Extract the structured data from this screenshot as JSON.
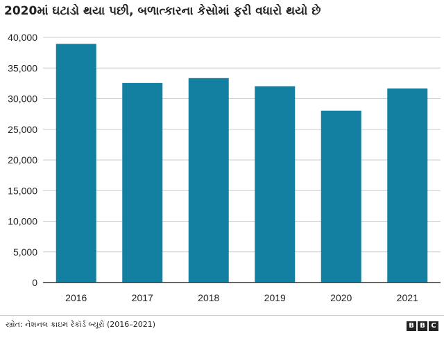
{
  "chart_data": {
    "type": "bar",
    "title": "2020માં ઘટાડો થયા પછી, બળાત્કારના કેસોમાં ફરી વધારો થયો છે",
    "categories": [
      "2016",
      "2017",
      "2018",
      "2019",
      "2020",
      "2021"
    ],
    "values": [
      38947,
      32559,
      33356,
      32033,
      28046,
      31677
    ],
    "ylim": [
      0,
      40000
    ],
    "yticks": [
      "0",
      "5,000",
      "10,000",
      "15,000",
      "20,000",
      "25,000",
      "30,000",
      "35,000",
      "40,000"
    ],
    "ytick_values": [
      0,
      5000,
      10000,
      15000,
      20000,
      25000,
      30000,
      35000,
      40000
    ],
    "grid": true,
    "bar_color": "#1380a1",
    "grid_color": "#cbcbcb",
    "axis_color": "#333333"
  },
  "footer": {
    "source": "સ્ત્રોત: નેશનલ ક્રાઇમ રેકૉર્ડ બ્યૂરો (2016–2021)",
    "logo_letters": [
      "B",
      "B",
      "C"
    ]
  }
}
